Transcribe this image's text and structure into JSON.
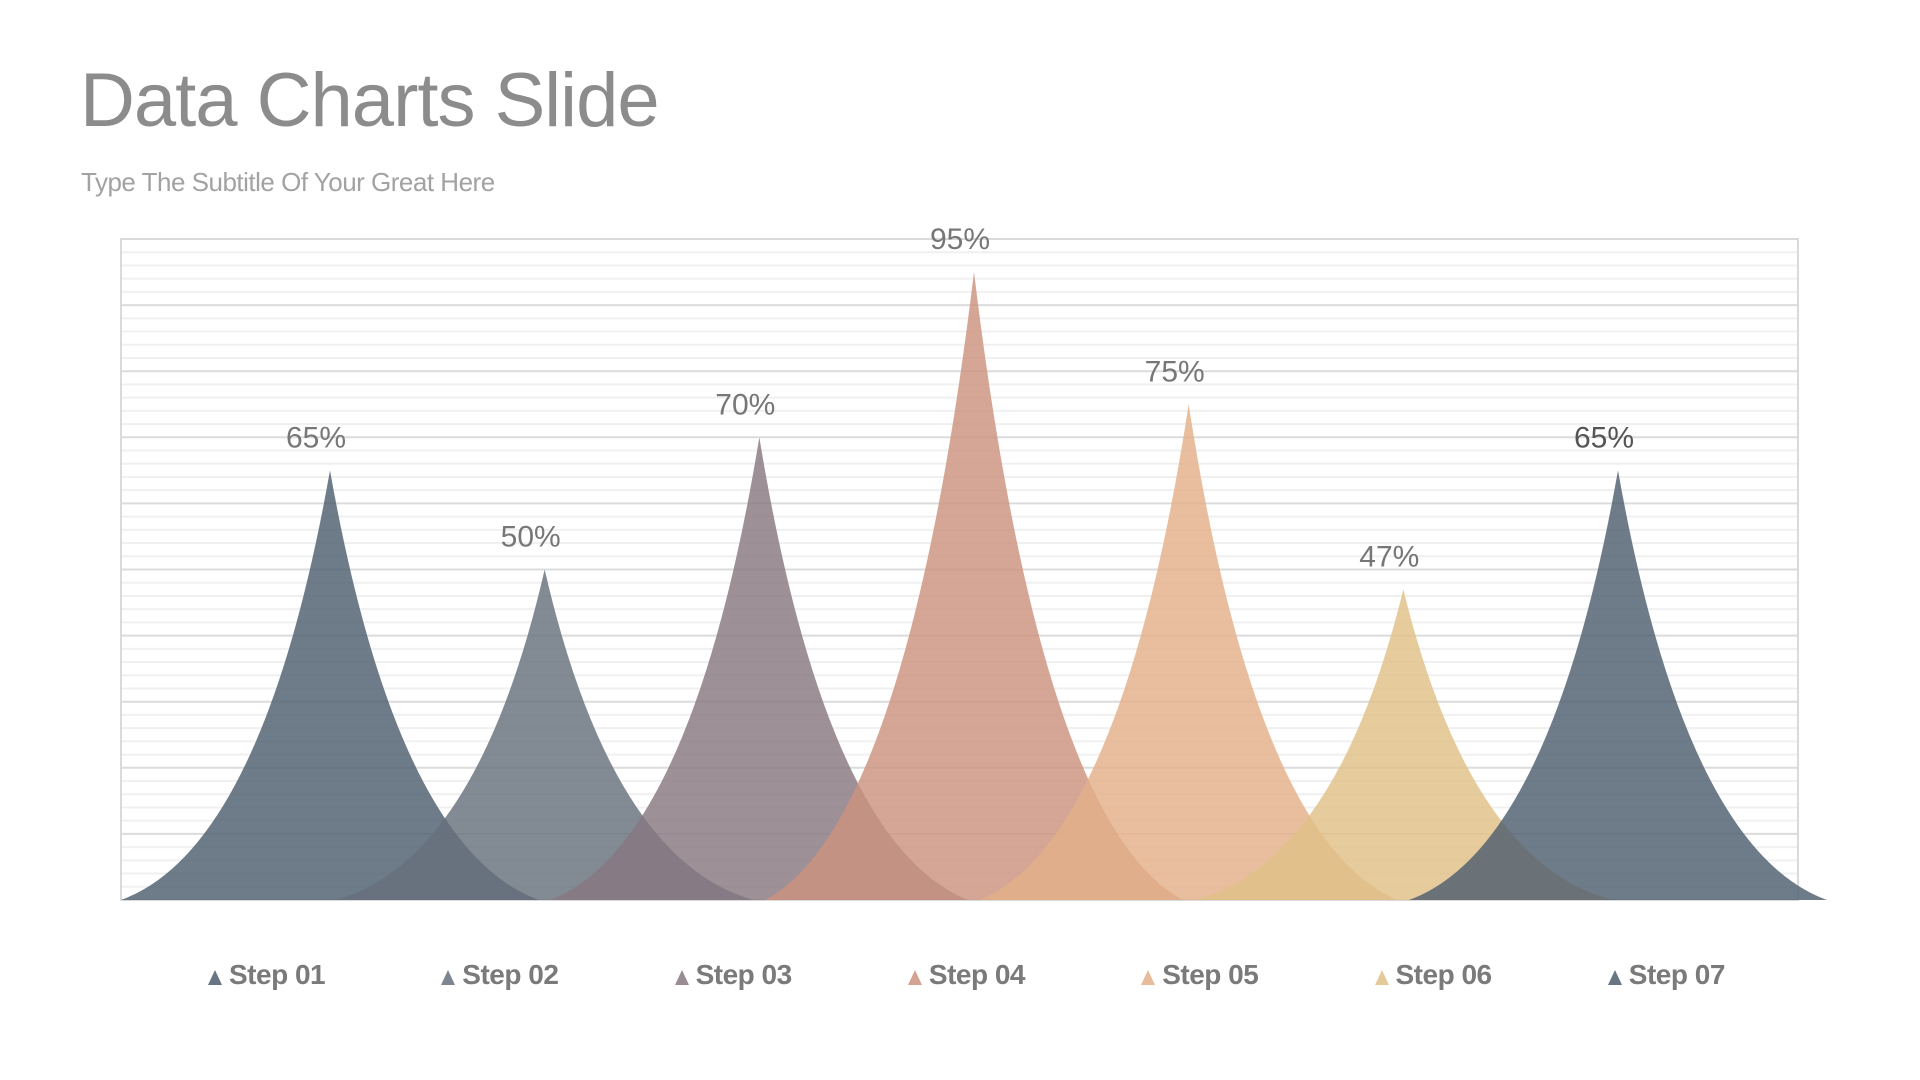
{
  "slide": {
    "title": "Data Charts Slide",
    "subtitle": "Type The Subtitle Of Your Great Here"
  },
  "colors": {
    "title": "#8c8c8c",
    "subtitle": "#a2a2a2",
    "label": "#777777",
    "label_emphasis": "#555555",
    "legend_text": "#7a7a7a",
    "border": "#dadada",
    "grid_major": "#dcdcdc",
    "grid_minor": "#f0f0f0"
  },
  "chart_data": {
    "type": "bar",
    "subtype": "concave-spike area",
    "title": "Data Charts Slide",
    "subtitle": "Type The Subtitle Of Your Great Here",
    "categories": [
      "Step 01",
      "Step 02",
      "Step 03",
      "Step 04",
      "Step 05",
      "Step 06",
      "Step 07"
    ],
    "values": [
      65,
      50,
      70,
      95,
      75,
      47,
      65
    ],
    "value_labels": [
      "65%",
      "50%",
      "70%",
      "95%",
      "75%",
      "47%",
      "65%"
    ],
    "series_colors": [
      "#4e5e6f",
      "#66707d",
      "#877880",
      "#cc937e",
      "#e3b089",
      "#e1c187",
      "#4e5e6f"
    ],
    "unit": "%",
    "xlabel": "",
    "ylabel": "",
    "ylim": [
      0,
      100
    ],
    "grid": {
      "major_step": 10,
      "minor_step": 2
    },
    "legend_position": "bottom"
  }
}
